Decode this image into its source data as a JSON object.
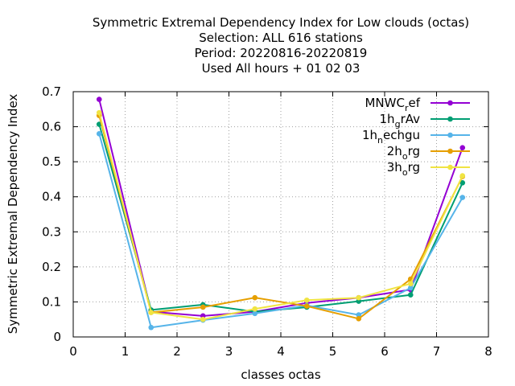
{
  "chart_data": {
    "type": "line",
    "title_lines": [
      "Symmetric Extremal Dependency Index  for Low clouds (octas)",
      "Selection: ALL    616 stations",
      "Period: 20220816-20220819",
      "Used  All hours + 01 02 03"
    ],
    "xlabel": "classes octas",
    "ylabel": "Symmetric Extremal Dependency Index",
    "xlim": [
      0,
      8
    ],
    "ylim": [
      0,
      0.7
    ],
    "xticks": [
      0,
      1,
      2,
      3,
      4,
      5,
      6,
      7,
      8
    ],
    "yticks": [
      0,
      0.1,
      0.2,
      0.3,
      0.4,
      0.5,
      0.6,
      0.7
    ],
    "ytick_labels": [
      "0",
      "0.1",
      "0.2",
      "0.3",
      "0.4",
      "0.5",
      "0.6",
      "0.7"
    ],
    "grid": true,
    "legend_position": "top-right",
    "x": [
      0.5,
      1.5,
      2.5,
      3.5,
      4.5,
      5.5,
      6.5,
      7.5
    ],
    "series": [
      {
        "legend_main": "MNWC",
        "legend_sub": "r",
        "legend_rest": "ef",
        "color": "#9400d3",
        "values": [
          0.678,
          0.072,
          0.06,
          0.072,
          0.097,
          0.112,
          0.135,
          0.54
        ]
      },
      {
        "legend_main": "1h",
        "legend_sub": "g",
        "legend_rest": "rAv",
        "color": "#009e73",
        "values": [
          0.607,
          0.077,
          0.092,
          0.072,
          0.085,
          0.102,
          0.12,
          0.44
        ]
      },
      {
        "legend_main": "1h",
        "legend_sub": "n",
        "legend_rest": "echgu",
        "color": "#56b4e9",
        "values": [
          0.58,
          0.027,
          0.048,
          0.067,
          0.09,
          0.063,
          0.14,
          0.398
        ]
      },
      {
        "legend_main": "2h",
        "legend_sub": "o",
        "legend_rest": "rg",
        "color": "#e69f00",
        "values": [
          0.632,
          0.07,
          0.085,
          0.112,
          0.088,
          0.052,
          0.165,
          0.458
        ]
      },
      {
        "legend_main": "3h",
        "legend_sub": "o",
        "legend_rest": "rg",
        "color": "#f0e442",
        "values": [
          0.64,
          0.07,
          0.05,
          0.08,
          0.105,
          0.112,
          0.152,
          0.46
        ]
      }
    ]
  }
}
